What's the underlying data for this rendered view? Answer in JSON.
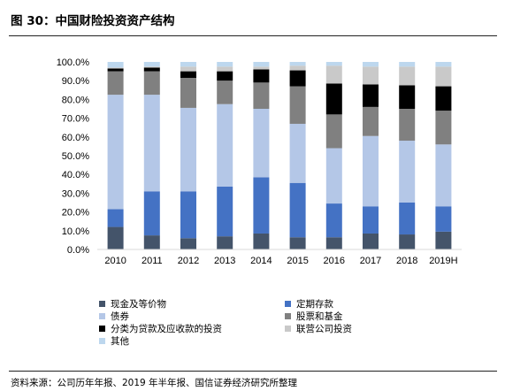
{
  "figure": {
    "title": "图 30：中国财险投资资产结构",
    "source": "资料来源：公司历年年报、2019 年半年报、国信证券经济研究所整理"
  },
  "chart_data": {
    "type": "bar",
    "stacked": true,
    "title": "",
    "xlabel": "",
    "ylabel": "",
    "ylim": [
      0,
      100
    ],
    "yticks": [
      "0.0%",
      "10.0%",
      "20.0%",
      "30.0%",
      "40.0%",
      "50.0%",
      "60.0%",
      "70.0%",
      "80.0%",
      "90.0%",
      "100.0%"
    ],
    "categories": [
      "2010",
      "2011",
      "2012",
      "2013",
      "2014",
      "2015",
      "2016",
      "2017",
      "2018",
      "2019H"
    ],
    "legend_position": "bottom",
    "series": [
      {
        "name": "现金及等价物",
        "color": "#44546a",
        "values": [
          12.0,
          7.5,
          6.0,
          7.0,
          8.5,
          6.5,
          6.5,
          8.5,
          8.0,
          9.5
        ]
      },
      {
        "name": "定期存款",
        "color": "#4472c4",
        "values": [
          9.5,
          23.5,
          25.0,
          26.5,
          30.0,
          29.0,
          18.0,
          14.5,
          17.0,
          13.5
        ]
      },
      {
        "name": "债券",
        "color": "#b4c7e7",
        "values": [
          61.0,
          51.5,
          44.5,
          44.0,
          36.5,
          31.5,
          29.5,
          37.5,
          33.0,
          33.0
        ]
      },
      {
        "name": "股票和基金",
        "color": "#808080",
        "values": [
          12.5,
          12.5,
          16.0,
          12.5,
          14.0,
          20.0,
          18.0,
          15.5,
          17.0,
          18.0
        ]
      },
      {
        "name": "分类为贷款及应收款的投资",
        "color": "#000000",
        "values": [
          1.5,
          2.0,
          3.5,
          5.0,
          7.0,
          8.5,
          16.5,
          12.0,
          12.5,
          13.0
        ]
      },
      {
        "name": "联营公司投资",
        "color": "#c9c9c9",
        "values": [
          0.5,
          0.5,
          2.5,
          2.5,
          1.5,
          2.5,
          9.5,
          9.5,
          10.0,
          10.5
        ]
      },
      {
        "name": "其他",
        "color": "#bdd7ee",
        "values": [
          3.0,
          2.5,
          2.5,
          2.5,
          2.5,
          2.0,
          2.0,
          2.5,
          2.5,
          2.5
        ]
      }
    ]
  }
}
